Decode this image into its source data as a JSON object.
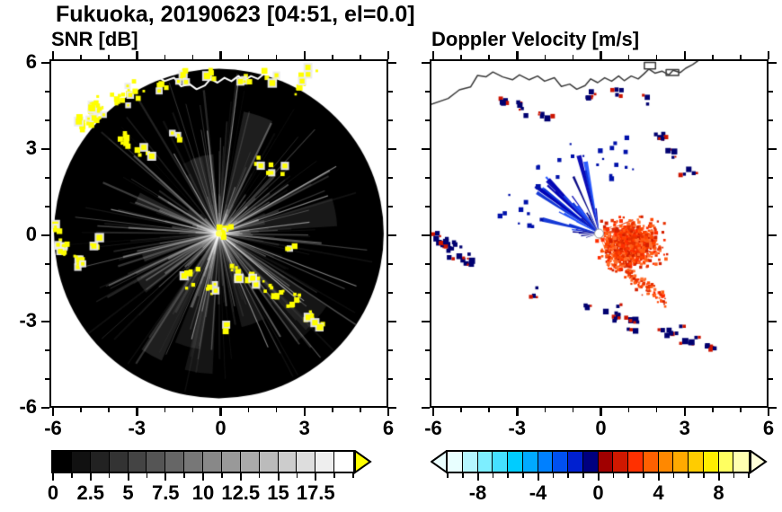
{
  "header": {
    "title": "Fukuoka, 20190623 [04:51, el=0.0]"
  },
  "panels": [
    {
      "id": "snr",
      "subtitle": "SNR [dB]"
    },
    {
      "id": "doppler",
      "subtitle": "Doppler Velocity [m/s]"
    }
  ],
  "axes": {
    "xlim": [
      -6,
      6
    ],
    "ylim": [
      -6,
      6
    ],
    "major_ticks": [
      -6,
      -3,
      0,
      3,
      6
    ],
    "major_tick_labels": [
      "-6",
      "-3",
      "0",
      "3",
      "6"
    ],
    "minor_tick_step": 1
  },
  "coastline": {
    "points": [
      [
        -6.0,
        4.5
      ],
      [
        -5.4,
        4.7
      ],
      [
        -5.0,
        5.0
      ],
      [
        -4.6,
        5.1
      ],
      [
        -4.35,
        5.5
      ],
      [
        -4.05,
        5.45
      ],
      [
        -3.8,
        5.62
      ],
      [
        -3.45,
        5.45
      ],
      [
        -3.1,
        5.35
      ],
      [
        -2.85,
        5.52
      ],
      [
        -2.5,
        5.35
      ],
      [
        -2.2,
        5.48
      ],
      [
        -1.95,
        5.3
      ],
      [
        -1.6,
        5.42
      ],
      [
        -1.35,
        5.12
      ],
      [
        -1.05,
        5.2
      ],
      [
        -0.8,
        5.02
      ],
      [
        -0.5,
        5.15
      ],
      [
        -0.3,
        5.38
      ],
      [
        -0.05,
        5.25
      ],
      [
        0.2,
        5.42
      ],
      [
        0.45,
        5.3
      ],
      [
        0.7,
        5.48
      ],
      [
        0.9,
        5.32
      ],
      [
        1.15,
        5.48
      ],
      [
        1.4,
        5.38
      ],
      [
        1.6,
        5.55
      ],
      [
        1.78,
        5.72
      ],
      [
        2.0,
        5.58
      ],
      [
        2.25,
        5.65
      ],
      [
        2.5,
        5.52
      ],
      [
        2.65,
        5.68
      ],
      [
        2.9,
        5.6
      ],
      [
        3.1,
        5.75
      ],
      [
        3.35,
        5.88
      ],
      [
        3.6,
        6.05
      ]
    ],
    "structures": [
      [
        1.62,
        5.95,
        0.4,
        0.22
      ],
      [
        2.4,
        5.7,
        0.45,
        0.2
      ]
    ]
  },
  "chart_data": [
    {
      "type": "heatmap",
      "title": "SNR [dB]",
      "xlabel": "",
      "ylabel": "",
      "xlim": [
        -6,
        6
      ],
      "ylim": [
        -6,
        6
      ],
      "x_tick_labels": [
        "-6",
        "-3",
        "0",
        "3",
        "6"
      ],
      "y_tick_labels": [
        "-6",
        "-3",
        "0",
        "3",
        "6"
      ],
      "grid": false,
      "colorbar": {
        "min": 0,
        "max": 20,
        "n_segments": 16,
        "palette": "black-to-white",
        "tick_values": [
          0,
          2.5,
          5,
          7.5,
          10,
          12.5,
          15,
          17.5
        ],
        "tick_labels": [
          "0",
          "2.5",
          "5",
          "7.5",
          "10",
          "12.5",
          "15",
          "17.5"
        ],
        "over_arrow_color": "#ffff00"
      },
      "coastline_color": "#ffffff",
      "scan": {
        "disk_radius": 5.9,
        "background_color": "#000000",
        "streak_color": "#ffffff",
        "echo_color": "#ffff00",
        "echo_clusters": [
          [
            -4.35,
            4.25,
            24,
            0.45
          ],
          [
            -3.6,
            4.65,
            9,
            0.3
          ],
          [
            -4.9,
            3.85,
            5,
            0.25
          ],
          [
            -3.0,
            4.95,
            7,
            0.3
          ],
          [
            -2.0,
            5.15,
            5,
            0.25
          ],
          [
            -1.2,
            5.5,
            6,
            0.3
          ],
          [
            -0.2,
            5.45,
            4,
            0.25
          ],
          [
            0.9,
            5.35,
            6,
            0.3
          ],
          [
            1.8,
            5.4,
            5,
            0.25
          ],
          [
            2.8,
            5.15,
            4,
            0.25
          ],
          [
            3.25,
            5.6,
            5,
            0.3
          ],
          [
            -3.35,
            3.3,
            8,
            0.3
          ],
          [
            -2.6,
            2.75,
            5,
            0.25
          ],
          [
            -1.5,
            3.5,
            4,
            0.2
          ],
          [
            2.0,
            2.15,
            6,
            0.3
          ],
          [
            1.35,
            2.5,
            4,
            0.2
          ],
          [
            0.2,
            0.05,
            9,
            0.22
          ],
          [
            -5.5,
            -0.55,
            12,
            0.3
          ],
          [
            -4.95,
            -1.0,
            8,
            0.3
          ],
          [
            -4.4,
            -0.35,
            5,
            0.2
          ],
          [
            -5.75,
            0.1,
            4,
            0.2
          ],
          [
            -0.95,
            -1.6,
            7,
            0.3
          ],
          [
            -0.25,
            -1.9,
            5,
            0.25
          ],
          [
            0.6,
            -1.4,
            6,
            0.3
          ],
          [
            1.3,
            -1.7,
            7,
            0.3
          ],
          [
            2.0,
            -2.05,
            8,
            0.3
          ],
          [
            2.7,
            -2.4,
            6,
            0.3
          ],
          [
            3.2,
            -2.9,
            5,
            0.25
          ],
          [
            3.6,
            -3.15,
            4,
            0.2
          ],
          [
            2.6,
            -0.45,
            3,
            0.2
          ],
          [
            0.3,
            -3.2,
            3,
            0.2
          ]
        ]
      }
    },
    {
      "type": "heatmap",
      "title": "Doppler Velocity [m/s]",
      "xlabel": "",
      "ylabel": "",
      "xlim": [
        -6,
        6
      ],
      "ylim": [
        -6,
        6
      ],
      "x_tick_labels": [
        "-6",
        "-3",
        "0",
        "3",
        "6"
      ],
      "grid": false,
      "colorbar": {
        "min": -10,
        "max": 10,
        "segment_colors": [
          "#e8ffff",
          "#b4f6ff",
          "#7deeff",
          "#45e0ff",
          "#00ccff",
          "#00aaff",
          "#0080ff",
          "#0050f0",
          "#0020d0",
          "#000080",
          "#a00000",
          "#d01800",
          "#ff3000",
          "#ff6000",
          "#ff8800",
          "#ffaa00",
          "#ffcc00",
          "#ffee00",
          "#ffff60",
          "#ffffb0"
        ],
        "tick_values": [
          -8,
          -4,
          0,
          4,
          8
        ],
        "tick_labels": [
          "-8",
          "-4",
          "0",
          "4",
          "8"
        ],
        "under_arrow_color": "#eaffff",
        "over_arrow_color": "#ffffd8"
      },
      "coastline_color": "#3a3a3a",
      "features": {
        "toward_fan": {
          "angle_deg": [
            95,
            172
          ],
          "max_range": 2.9,
          "colors": [
            "#0a2fd4",
            "#0000b2",
            "#1c49ee",
            "#000080",
            "#2255ff"
          ]
        },
        "toward_specks": {
          "angle_deg": [
            60,
            175
          ],
          "range": [
            2.0,
            3.6
          ],
          "color": "#0011aa"
        },
        "away_blob": {
          "cx": 1.15,
          "cy": -0.35,
          "sx": 0.95,
          "sy": 0.7,
          "colors": [
            "#ff4400",
            "#ff2d00",
            "#e83000",
            "#ff7030",
            "#d42000",
            "#ff5c14"
          ]
        },
        "away_wedges": {
          "angle_deg": [
            -70,
            40
          ],
          "max_range": 1.7
        },
        "tail": {
          "from": [
            0.4,
            -0.9
          ],
          "to": [
            2.35,
            -2.35
          ]
        },
        "negative_color": "#000070",
        "positive_color": "#cc1400",
        "mixed_clusters": [
          [
            -5.25,
            -0.5,
            10,
            0.3
          ],
          [
            -4.75,
            -0.95,
            7,
            0.3
          ],
          [
            -5.7,
            -0.15,
            4,
            0.2
          ],
          [
            0.55,
            -2.85,
            7,
            0.3
          ],
          [
            1.25,
            -3.15,
            5,
            0.25
          ],
          [
            -0.4,
            -2.5,
            3,
            0.2
          ],
          [
            2.65,
            -3.3,
            6,
            0.3
          ],
          [
            3.35,
            -3.65,
            5,
            0.25
          ],
          [
            4.0,
            -4.05,
            3,
            0.2
          ],
          [
            2.2,
            3.35,
            5,
            0.3
          ],
          [
            2.75,
            2.8,
            4,
            0.25
          ],
          [
            3.2,
            2.1,
            3,
            0.2
          ],
          [
            -2.7,
            4.4,
            4,
            0.25
          ],
          [
            -2.0,
            4.15,
            3,
            0.2
          ],
          [
            -3.4,
            4.6,
            3,
            0.2
          ],
          [
            -0.4,
            4.85,
            3,
            0.2
          ],
          [
            0.8,
            4.9,
            3,
            0.2
          ],
          [
            1.7,
            4.55,
            2,
            0.2
          ],
          [
            -2.3,
            -2.1,
            3,
            0.2
          ]
        ]
      }
    }
  ]
}
